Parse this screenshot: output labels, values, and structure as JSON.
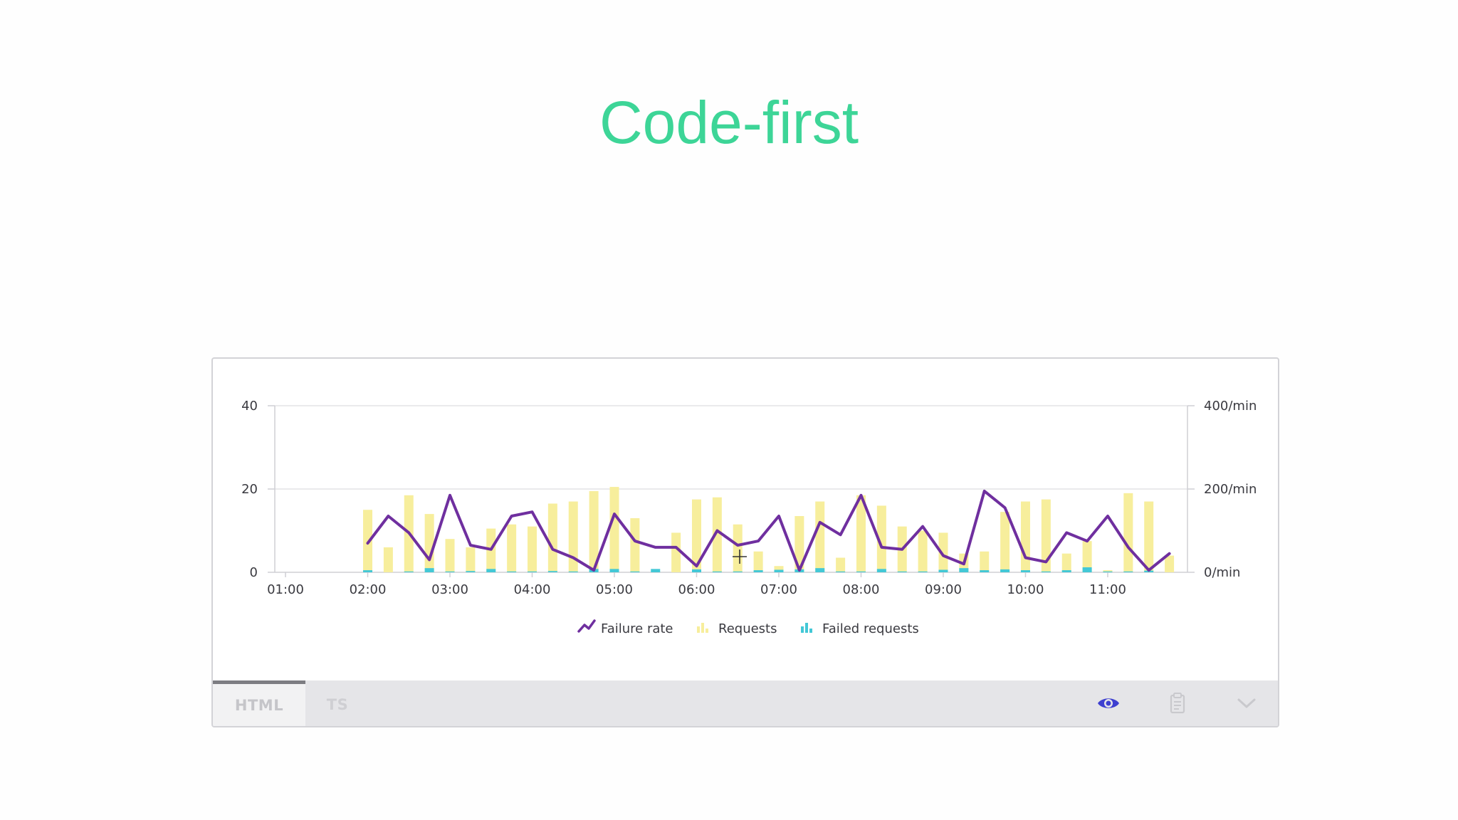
{
  "page": {
    "title": "Code-first"
  },
  "toolbar": {
    "tabs": [
      {
        "label": "HTML",
        "active": true
      },
      {
        "label": "TS",
        "active": false
      }
    ],
    "icons": [
      "eye-icon",
      "clipboard-icon",
      "chevron-down-icon"
    ]
  },
  "colors": {
    "title": "#3dd597",
    "failure_rate": "#6f2f9f",
    "requests": "#f7ee9c",
    "failed_requests": "#43c8d6",
    "eye_icon": "#3d3fd0"
  },
  "chart_data": {
    "type": "bar",
    "x_ticks": [
      "01:00",
      "02:00",
      "03:00",
      "04:00",
      "05:00",
      "06:00",
      "07:00",
      "08:00",
      "09:00",
      "10:00",
      "11:00"
    ],
    "y_left": {
      "ticks": [
        0,
        20,
        40
      ],
      "labels": [
        "0",
        "20",
        "40"
      ],
      "range": [
        0,
        40
      ]
    },
    "y_right": {
      "labels": [
        "0/min",
        "200/min",
        "400/min"
      ],
      "range": [
        0,
        400
      ]
    },
    "x_range_hours": [
      0.87,
      11.97
    ],
    "grid": true,
    "legend": {
      "position": "bottom-center",
      "entries": [
        "Failure rate",
        "Requests",
        "Failed requests"
      ]
    },
    "series": [
      {
        "name": "Requests",
        "type": "bar",
        "axis": "right",
        "x": [
          2.0,
          2.25,
          2.5,
          2.75,
          3.0,
          3.25,
          3.5,
          3.75,
          4.0,
          4.25,
          4.5,
          4.75,
          5.0,
          5.25,
          5.5,
          5.75,
          6.0,
          6.25,
          6.5,
          6.75,
          7.0,
          7.25,
          7.5,
          7.75,
          8.0,
          8.25,
          8.5,
          8.75,
          9.0,
          9.25,
          9.5,
          9.75,
          10.0,
          10.25,
          10.5,
          10.75,
          11.0,
          11.25,
          11.5,
          11.75
        ],
        "values": [
          150,
          60,
          185,
          140,
          80,
          60,
          105,
          115,
          110,
          165,
          170,
          195,
          205,
          130,
          0,
          95,
          175,
          180,
          115,
          50,
          15,
          135,
          170,
          35,
          185,
          160,
          110,
          100,
          95,
          45,
          50,
          145,
          170,
          175,
          45,
          75,
          5,
          190,
          170,
          40
        ]
      },
      {
        "name": "Failed requests",
        "type": "bar",
        "axis": "right",
        "x": [
          2.0,
          2.25,
          2.5,
          2.75,
          3.0,
          3.25,
          3.5,
          3.75,
          4.0,
          4.25,
          4.5,
          4.75,
          5.0,
          5.25,
          5.5,
          5.75,
          6.0,
          6.25,
          6.5,
          6.75,
          7.0,
          7.25,
          7.5,
          7.75,
          8.0,
          8.25,
          8.5,
          8.75,
          9.0,
          9.25,
          9.5,
          9.75,
          10.0,
          10.25,
          10.5,
          10.75,
          11.0,
          11.25,
          11.5,
          11.75
        ],
        "values": [
          5,
          0,
          2,
          10,
          2,
          3,
          8,
          2,
          2,
          3,
          2,
          8,
          8,
          2,
          8,
          0,
          7,
          2,
          2,
          5,
          6,
          7,
          10,
          2,
          2,
          8,
          2,
          2,
          6,
          10,
          5,
          7,
          5,
          2,
          5,
          12,
          2,
          2,
          4,
          0
        ]
      },
      {
        "name": "Failure rate",
        "type": "line",
        "axis": "left",
        "x": [
          2.0,
          2.25,
          2.5,
          2.75,
          3.0,
          3.25,
          3.5,
          3.75,
          4.0,
          4.25,
          4.5,
          4.75,
          5.0,
          5.25,
          5.5,
          5.75,
          6.0,
          6.25,
          6.5,
          6.75,
          7.0,
          7.25,
          7.5,
          7.75,
          8.0,
          8.25,
          8.5,
          8.75,
          9.0,
          9.25,
          9.5,
          9.75,
          10.0,
          10.25,
          10.5,
          10.75,
          11.0,
          11.25,
          11.5,
          11.75
        ],
        "values": [
          7,
          13.5,
          9.5,
          3,
          18.5,
          6.5,
          5.5,
          13.5,
          14.5,
          5.5,
          3.5,
          0.5,
          14,
          7.5,
          6,
          6,
          1.5,
          10,
          6.5,
          7.5,
          13.5,
          0.5,
          12,
          9,
          18.5,
          6,
          5.5,
          11,
          4,
          2,
          19.5,
          15.5,
          3.5,
          2.5,
          9.5,
          7.5,
          13.5,
          6,
          0.5,
          4.5
        ]
      }
    ]
  }
}
